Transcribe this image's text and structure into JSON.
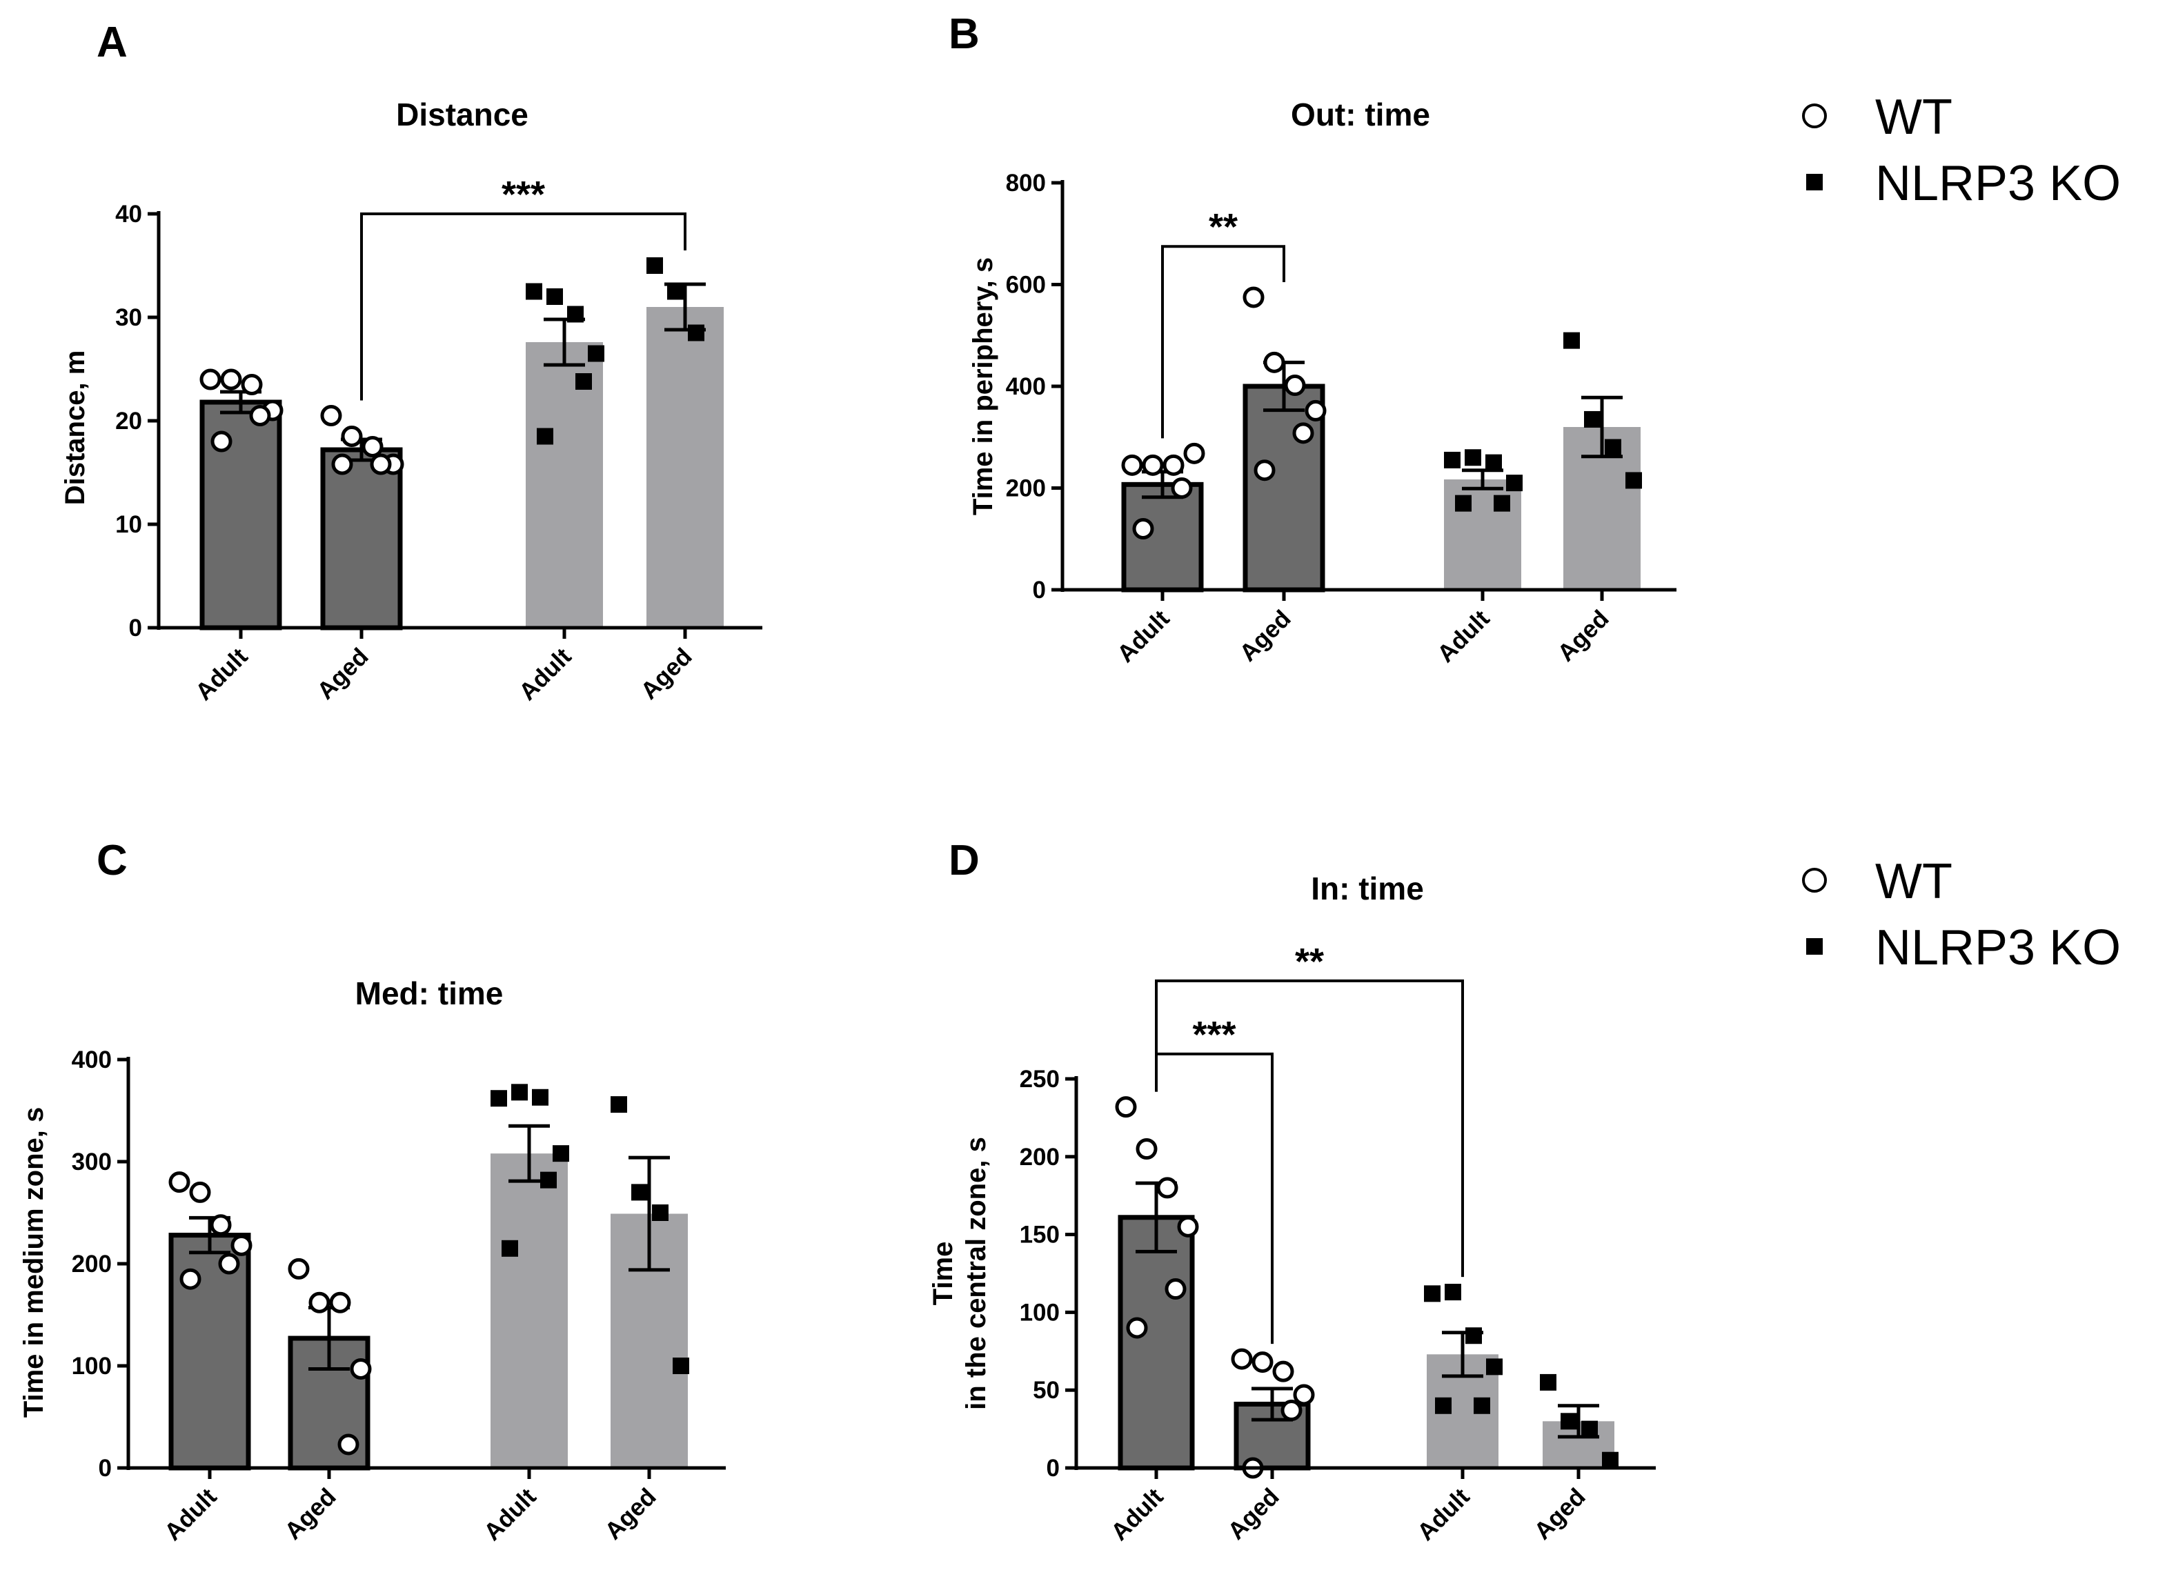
{
  "legend_blocks": [
    {
      "items": [
        {
          "label": "WT",
          "marker": "open-circle"
        },
        {
          "label": "NLRP3 KO",
          "marker": "filled-square"
        }
      ]
    },
    {
      "items": [
        {
          "label": "WT",
          "marker": "open-circle"
        },
        {
          "label": "NLRP3 KO",
          "marker": "filled-square"
        }
      ]
    }
  ],
  "colors": {
    "wt_bar": "#6b6b6b",
    "ko_bar": "#a3a3a6",
    "axis": "#000000"
  },
  "chart_data": [
    {
      "panel": "A",
      "type": "bar",
      "title": "Distance",
      "ylabel": "Distance, m",
      "xlabel": "",
      "ylim": [
        0,
        40
      ],
      "yticks": [
        0,
        10,
        20,
        30,
        40
      ],
      "categories": [
        "Adult",
        "Aged",
        "Adult",
        "Aged"
      ],
      "groups": [
        "WT",
        "WT",
        "NLRP3 KO",
        "NLRP3 KO"
      ],
      "values": [
        21.8,
        17.2,
        27.6,
        31.0
      ],
      "sem": [
        1.0,
        1.0,
        2.2,
        2.2
      ],
      "points": [
        [
          24,
          24,
          23.5,
          21,
          20.5,
          18
        ],
        [
          20.5,
          18.5,
          17.5,
          15.8,
          15.8,
          15.8
        ],
        [
          32.5,
          32,
          30.3,
          26.5,
          23.8,
          18.5
        ],
        [
          35,
          32.5,
          28.5
        ]
      ],
      "significance": [
        {
          "from": 1,
          "to": 3,
          "label": "***",
          "y": 40
        }
      ]
    },
    {
      "panel": "B",
      "type": "bar",
      "title": "Out: time",
      "ylabel": "Time in periphery, s",
      "xlabel": "",
      "ylim": [
        0,
        800
      ],
      "yticks": [
        0,
        200,
        400,
        600,
        800
      ],
      "categories": [
        "Adult",
        "Aged",
        "Adult",
        "Aged"
      ],
      "groups": [
        "WT",
        "WT",
        "NLRP3 KO",
        "NLRP3 KO"
      ],
      "values": [
        207,
        400,
        217,
        320
      ],
      "sem": [
        25,
        47,
        18,
        58
      ],
      "points": [
        [
          245,
          245,
          245,
          268,
          200,
          120
        ],
        [
          575,
          447,
          402,
          352,
          308,
          235
        ],
        [
          255,
          260,
          250,
          210,
          170,
          170
        ],
        [
          490,
          335,
          280,
          215
        ]
      ],
      "significance": [
        {
          "from": 0,
          "to": 1,
          "label": "**",
          "y": 675
        }
      ]
    },
    {
      "panel": "C",
      "type": "bar",
      "title": "Med: time",
      "ylabel": "Time in medium zone, s",
      "xlabel": "",
      "ylim": [
        0,
        400
      ],
      "yticks": [
        0,
        100,
        200,
        300,
        400
      ],
      "categories": [
        "Adult",
        "Aged",
        "Adult",
        "Aged"
      ],
      "groups": [
        "WT",
        "WT",
        "NLRP3 KO",
        "NLRP3 KO"
      ],
      "values": [
        228,
        127,
        308,
        249
      ],
      "sem": [
        17,
        30,
        27,
        55
      ],
      "points": [
        [
          280,
          270,
          238,
          218,
          200,
          185
        ],
        [
          195,
          162,
          162,
          97,
          23
        ],
        [
          362,
          368,
          363,
          308,
          282,
          215
        ],
        [
          356,
          270,
          250,
          100
        ]
      ],
      "significance": []
    },
    {
      "panel": "D",
      "type": "bar",
      "title": "In: time",
      "ylabel": "Time\nin the central zone, s",
      "xlabel": "",
      "ylim": [
        0,
        250
      ],
      "yticks": [
        0,
        50,
        100,
        150,
        200,
        250
      ],
      "categories": [
        "Adult",
        "Aged",
        "Adult",
        "Aged"
      ],
      "groups": [
        "WT",
        "WT",
        "NLRP3 KO",
        "NLRP3 KO"
      ],
      "values": [
        161,
        41,
        73,
        30
      ],
      "sem": [
        22,
        10,
        14,
        10
      ],
      "points": [
        [
          232,
          205,
          180,
          155,
          115,
          90
        ],
        [
          70,
          68,
          62,
          47,
          37,
          0
        ],
        [
          112,
          113,
          85,
          65,
          40,
          40
        ],
        [
          55,
          30,
          25,
          5
        ]
      ],
      "significance": [
        {
          "from": 0,
          "to": 1,
          "label": "***",
          "y": 266
        },
        {
          "from": 0,
          "to": 2,
          "label": "**",
          "y": 313
        }
      ]
    }
  ]
}
